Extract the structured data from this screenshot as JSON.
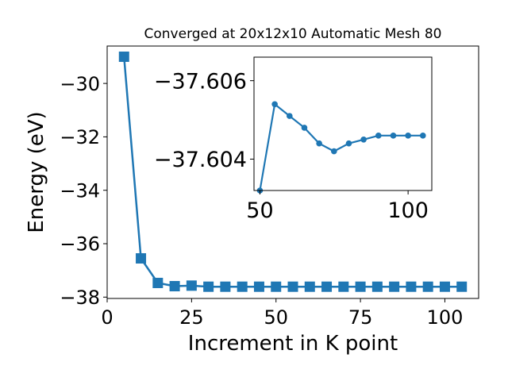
{
  "chart_data": [
    {
      "type": "line",
      "title": "Converged at 20x12x10 Automatic Mesh 80",
      "xlabel": "Increment in K point",
      "ylabel": "Energy (eV)",
      "xlim": [
        0,
        110
      ],
      "ylim": [
        -38.05,
        -28.6
      ],
      "xticks": [
        0,
        25,
        50,
        75,
        100
      ],
      "yticks": [
        -38,
        -36,
        -34,
        -32,
        -30
      ],
      "marker": "square",
      "color": "#1f77b4",
      "grid": false,
      "legend": "none",
      "series": [
        {
          "x": [
            5,
            10,
            15,
            20,
            25,
            30,
            35,
            40,
            45,
            50,
            55,
            60,
            65,
            70,
            75,
            80,
            85,
            90,
            95,
            100,
            105
          ],
          "y": [
            -29.0,
            -36.55,
            -37.47,
            -37.59,
            -37.57,
            -37.61,
            -37.61,
            -37.61,
            -37.61,
            -37.61,
            -37.61,
            -37.61,
            -37.61,
            -37.61,
            -37.61,
            -37.61,
            -37.61,
            -37.61,
            -37.61,
            -37.61,
            -37.61
          ]
        }
      ]
    },
    {
      "type": "line",
      "title": "",
      "xlabel": "",
      "ylabel": "",
      "inset": true,
      "xlim": [
        48,
        108
      ],
      "ylim": [
        -37.6032,
        -37.6066
      ],
      "xticks": [
        50,
        100
      ],
      "yticks": [
        -37.606,
        -37.604
      ],
      "marker": "circle",
      "color": "#1f77b4",
      "grid": false,
      "legend": "none",
      "series": [
        {
          "x": [
            50,
            55,
            60,
            65,
            70,
            75,
            80,
            85,
            90,
            95,
            100,
            105
          ],
          "y": [
            -37.6032,
            -37.6054,
            -37.6051,
            -37.6048,
            -37.6044,
            -37.6042,
            -37.6044,
            -37.6045,
            -37.6046,
            -37.6046,
            -37.6046,
            -37.6046
          ]
        }
      ]
    }
  ]
}
